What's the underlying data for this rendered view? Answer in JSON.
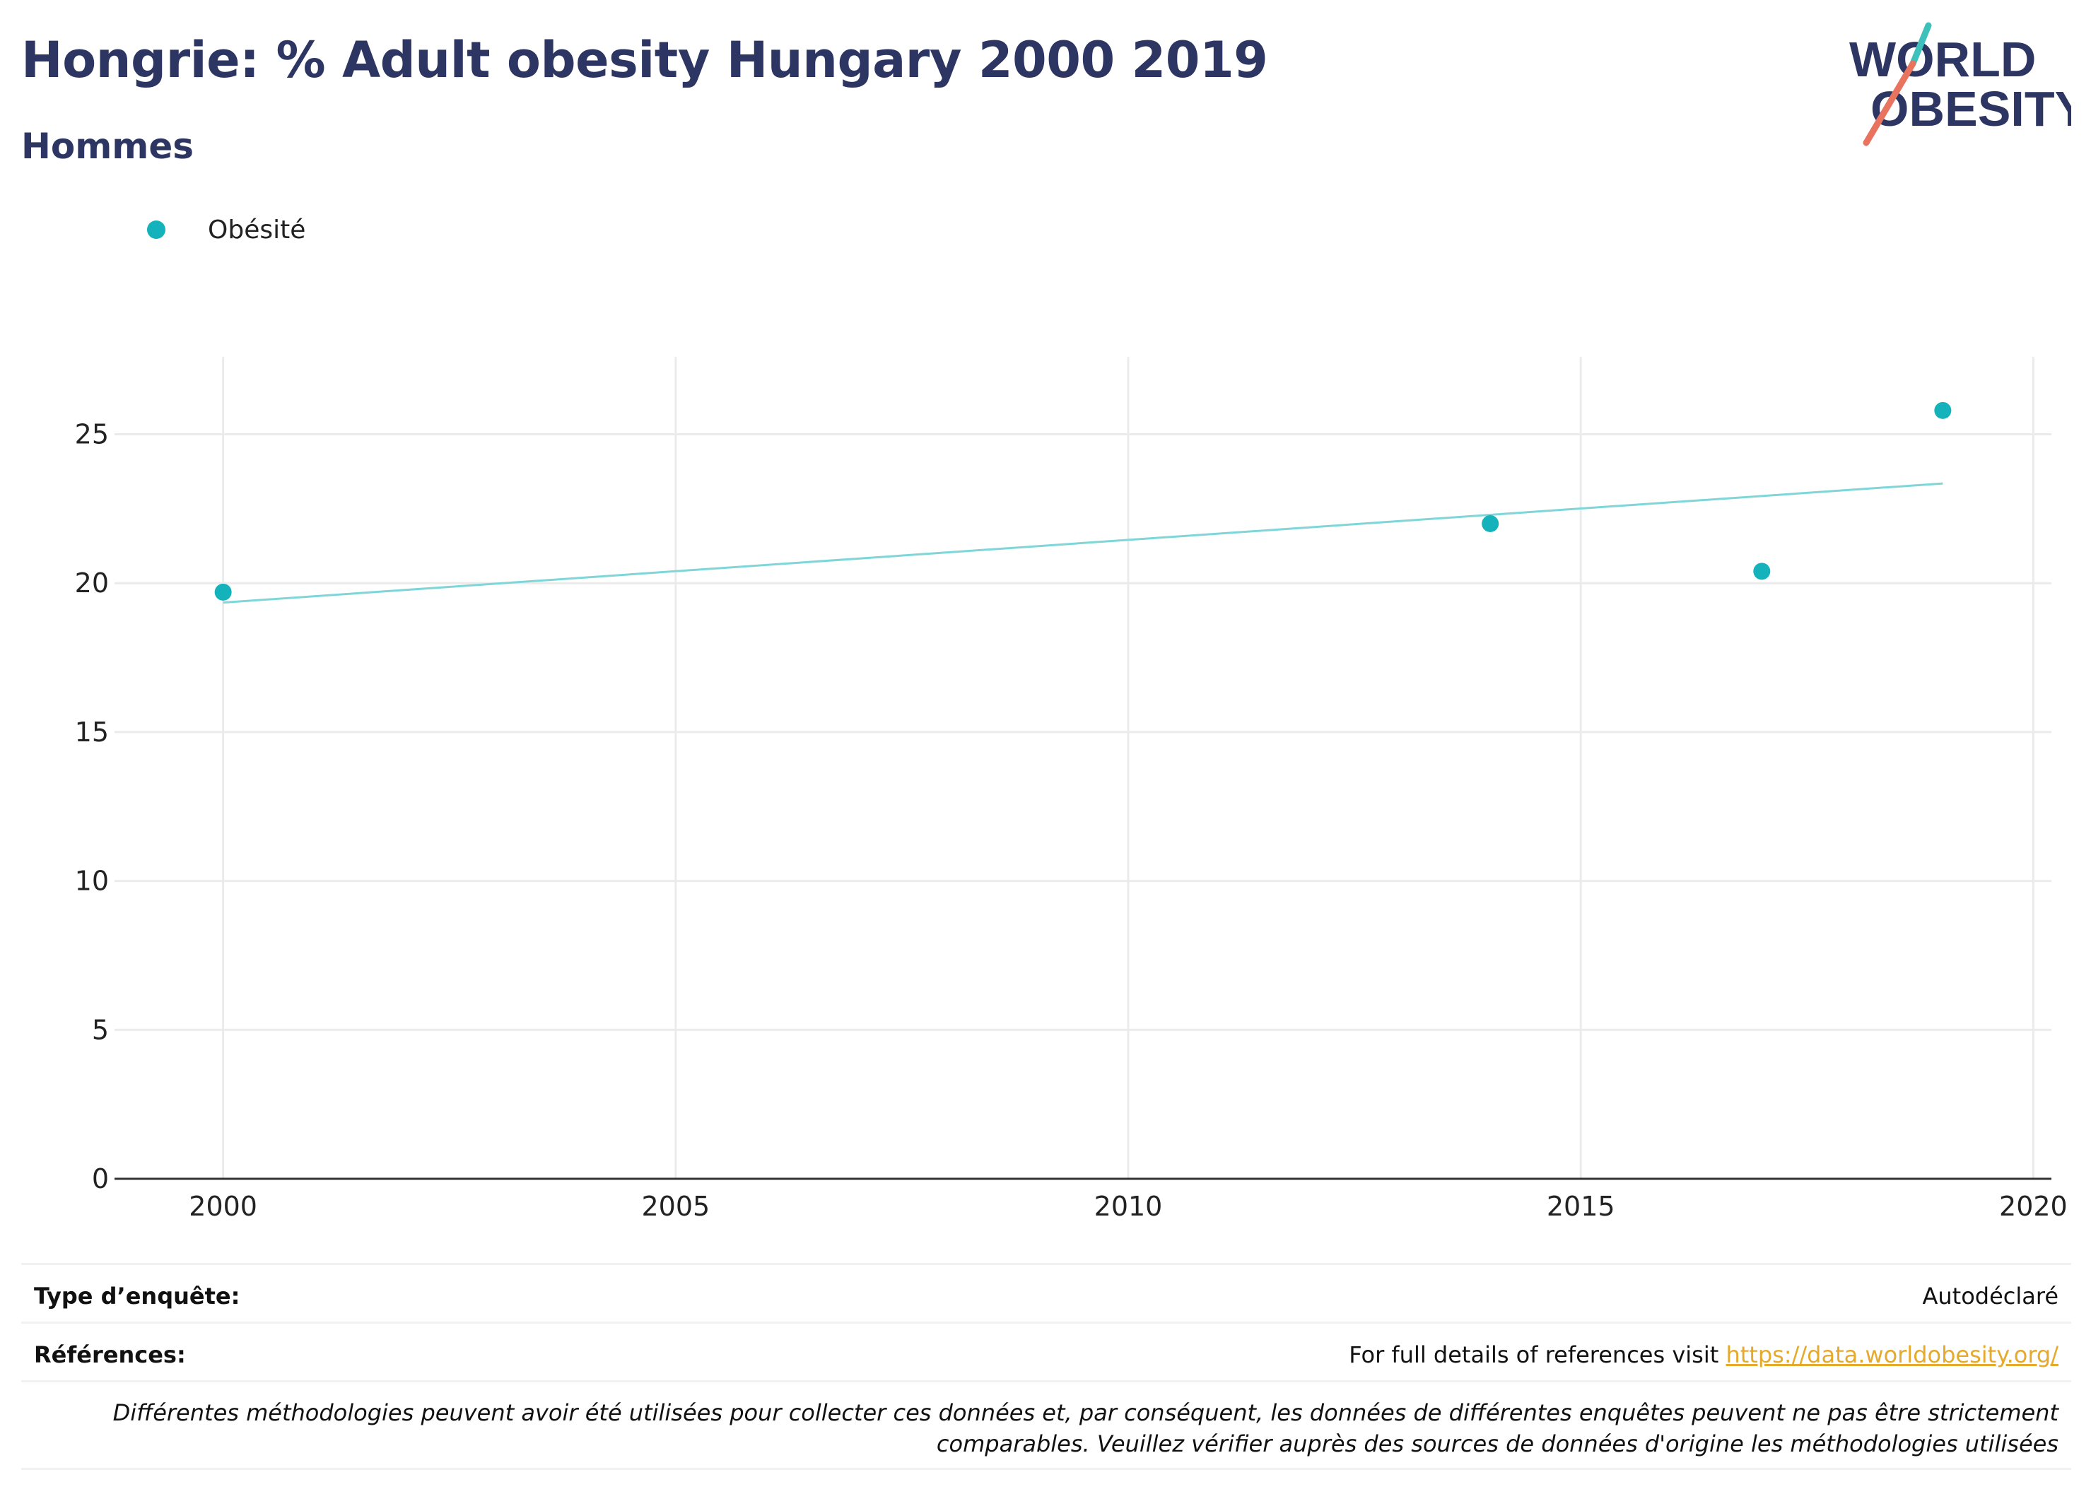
{
  "header": {
    "title": "Hongrie: % Adult obesity Hungary 2000 2019",
    "subtitle": "Hommes"
  },
  "logo": {
    "line1": "WORLD",
    "line2": "OBESITY"
  },
  "colors": {
    "title": "#2d3663",
    "series": "#14b2ba",
    "trend": "#7fd6d8",
    "link": "#e5a92b",
    "logo_teal": "#3ec1bb",
    "logo_red": "#e8735f"
  },
  "chart_data": {
    "type": "scatter",
    "series": [
      {
        "name": "Obésité",
        "x": [
          2000,
          2014,
          2017,
          2019
        ],
        "y": [
          19.7,
          22.0,
          20.4,
          25.8
        ]
      }
    ],
    "trendline": {
      "x": [
        2000,
        2019
      ],
      "y": [
        19.35,
        23.35
      ]
    },
    "xlim": [
      1998.8,
      2020.2
    ],
    "ylim": [
      0,
      27.6
    ],
    "xticks": [
      2000,
      2005,
      2010,
      2015,
      2020
    ],
    "yticks": [
      0,
      5,
      10,
      15,
      20,
      25
    ],
    "grid": true,
    "legend_position": "top-left"
  },
  "footer": {
    "survey_label": "Type d’enquête:",
    "survey_value": "Autodéclaré",
    "refs_label": "Références:",
    "refs_text": "For full details of references visit ",
    "refs_link": "https://data.worldobesity.org/",
    "note": "Différentes méthodologies peuvent avoir été utilisées pour collecter ces données et, par conséquent, les données de différentes enquêtes peuvent ne pas être strictement comparables. Veuillez vérifier auprès des sources de données d'origine les méthodologies utilisées"
  }
}
